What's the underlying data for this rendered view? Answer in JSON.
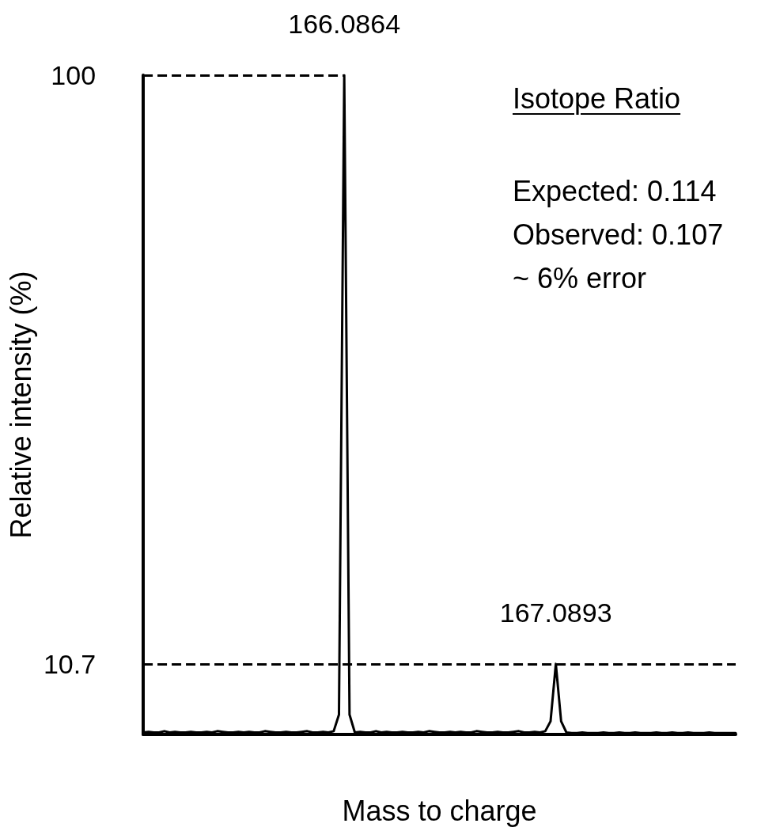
{
  "chart_data": {
    "type": "line",
    "xlabel": "Mass to charge",
    "ylabel": "Relative intensity (%)",
    "categories": [
      null,
      null,
      null,
      null,
      null,
      null,
      null,
      null,
      null,
      null,
      null,
      null,
      null,
      null,
      null,
      null,
      null,
      null,
      null,
      null,
      null,
      null,
      null,
      null,
      null,
      null,
      null,
      null,
      null,
      null,
      null,
      null,
      null,
      null,
      null,
      null,
      null,
      null,
      null,
      null,
      null,
      null,
      null,
      null,
      null,
      null,
      null,
      null,
      null,
      null,
      null,
      null,
      null,
      null,
      null,
      null,
      null,
      null,
      null,
      null,
      null,
      null,
      null,
      null,
      null,
      null,
      null,
      null,
      null,
      null,
      null,
      null,
      null,
      null,
      null,
      null,
      null,
      null,
      null,
      null,
      null,
      null,
      null,
      null,
      null,
      null,
      null,
      null,
      null,
      null,
      null,
      null,
      null,
      null,
      null,
      null,
      null,
      null,
      null,
      null,
      null,
      null,
      null,
      null,
      null,
      null,
      null,
      null,
      null,
      null,
      null,
      null,
      null
    ],
    "ylim": [
      0,
      100
    ],
    "yticks": [
      10.7,
      100
    ],
    "grid": false,
    "marker": "none",
    "line_style": "solid",
    "series": [
      {
        "color": "#000000",
        "values": [
          0.3,
          0.4,
          0.3,
          0.3,
          0.5,
          0.3,
          0.4,
          0.3,
          0.3,
          0.4,
          0.3,
          0.3,
          0.4,
          0.3,
          0.5,
          0.4,
          0.3,
          0.3,
          0.4,
          0.3,
          0.4,
          0.3,
          0.3,
          0.5,
          0.4,
          0.3,
          0.3,
          0.4,
          0.3,
          0.3,
          0.4,
          0.5,
          0.3,
          0.3,
          0.4,
          0.3,
          0.5,
          3,
          100,
          3,
          0.3,
          0.4,
          0.3,
          0.3,
          0.5,
          0.3,
          0.4,
          0.3,
          0.3,
          0.4,
          0.3,
          0.3,
          0.4,
          0.3,
          0.5,
          0.4,
          0.3,
          0.3,
          0.4,
          0.3,
          0.4,
          0.3,
          0.3,
          0.5,
          0.4,
          0.3,
          0.3,
          0.4,
          0.3,
          0.3,
          0.4,
          0.5,
          0.3,
          0.3,
          0.4,
          0.3,
          0.5,
          2,
          10.7,
          2,
          0.3,
          0.2,
          0.2,
          0.3,
          0.2,
          0.2,
          0.2,
          0.3,
          0.2,
          0.2,
          0.3,
          0.2,
          0.2,
          0.3,
          0.2,
          0.2,
          0.2,
          0.3,
          0.2,
          0.2,
          0.3,
          0.2,
          0.2,
          0.3,
          0.2,
          0.2,
          0.2,
          0.3,
          0.2,
          0.2,
          0.2,
          0.2,
          0.2
        ]
      }
    ],
    "ref_lines": [
      {
        "axis": "y",
        "value": 100,
        "line_style": "dashed",
        "color": "#000000"
      },
      {
        "axis": "y",
        "value": 10.7,
        "line_style": "dashed",
        "color": "#000000"
      }
    ],
    "annotations": [
      {
        "text": "166.0864",
        "y": 100
      },
      {
        "text": "167.0893",
        "y": 10.7
      },
      "Isotope Ratio",
      "Expected: 0.114",
      "Observed: 0.107",
      "~ 6% error"
    ]
  }
}
